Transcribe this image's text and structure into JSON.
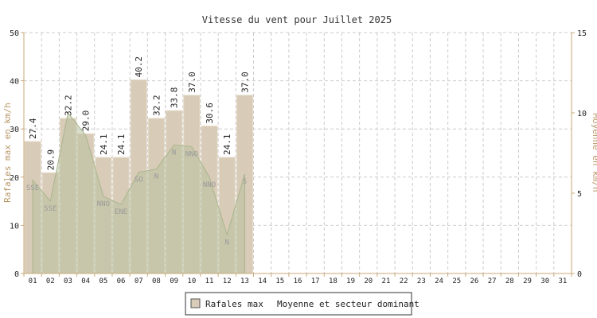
{
  "chart_data": {
    "type": "bar",
    "title": "Vitesse du vent pour Juillet 2025",
    "categories": [
      "01",
      "02",
      "03",
      "04",
      "05",
      "06",
      "07",
      "08",
      "09",
      "10",
      "11",
      "12",
      "13",
      "14",
      "15",
      "16",
      "17",
      "18",
      "19",
      "20",
      "21",
      "22",
      "23",
      "24",
      "25",
      "26",
      "27",
      "28",
      "29",
      "30",
      "31"
    ],
    "series": [
      {
        "name": "Rafales max",
        "values": [
          27.4,
          20.9,
          32.2,
          29.0,
          24.1,
          24.1,
          40.2,
          32.2,
          33.8,
          37.0,
          30.6,
          24.1,
          37.0,
          null,
          null,
          null,
          null,
          null,
          null,
          null,
          null,
          null,
          null,
          null,
          null,
          null,
          null,
          null,
          null,
          null,
          null
        ],
        "value_labels": [
          "27.4",
          "20.9",
          "32.2",
          "29.0",
          "24.1",
          "24.1",
          "40.2",
          "32.2",
          "33.8",
          "37.0",
          "30.6",
          "24.1",
          "37.0"
        ]
      },
      {
        "name": "Moyenne et secteur dominant",
        "values": [
          5.8,
          4.5,
          10.0,
          8.6,
          4.8,
          4.3,
          6.3,
          6.5,
          8.0,
          7.9,
          6.0,
          2.4,
          6.2,
          null,
          null,
          null,
          null,
          null,
          null,
          null,
          null,
          null,
          null,
          null,
          null,
          null,
          null,
          null,
          null,
          null,
          null
        ],
        "sectors": [
          "SSE",
          "SSE",
          "",
          "",
          "NNO",
          "ENE",
          "SO",
          "N",
          "N",
          "NNO",
          "NNO",
          "N",
          "S"
        ]
      }
    ],
    "ylabel": "Rafales max en km/h",
    "y2label": "Moyenne en km/h",
    "ylim": [
      0,
      50
    ],
    "y2lim": [
      0,
      15
    ],
    "yticks": [
      "0",
      "10",
      "20",
      "30",
      "40",
      "50"
    ],
    "y2ticks": [
      "0",
      "5",
      "10",
      "15"
    ],
    "grid": true,
    "legend_position": "bottom-center",
    "colors": {
      "bar_fill": "#d8cbb7",
      "bar_edge": "#e6dccb",
      "area_fill": "#b9c3a0",
      "area_line": "#a9b58d",
      "sector_text": "#9a9a9a",
      "grid": "#cccccc",
      "axis": "#c8a878",
      "axis_label": "#b89868",
      "title": "#333333",
      "text": "#222222"
    }
  }
}
